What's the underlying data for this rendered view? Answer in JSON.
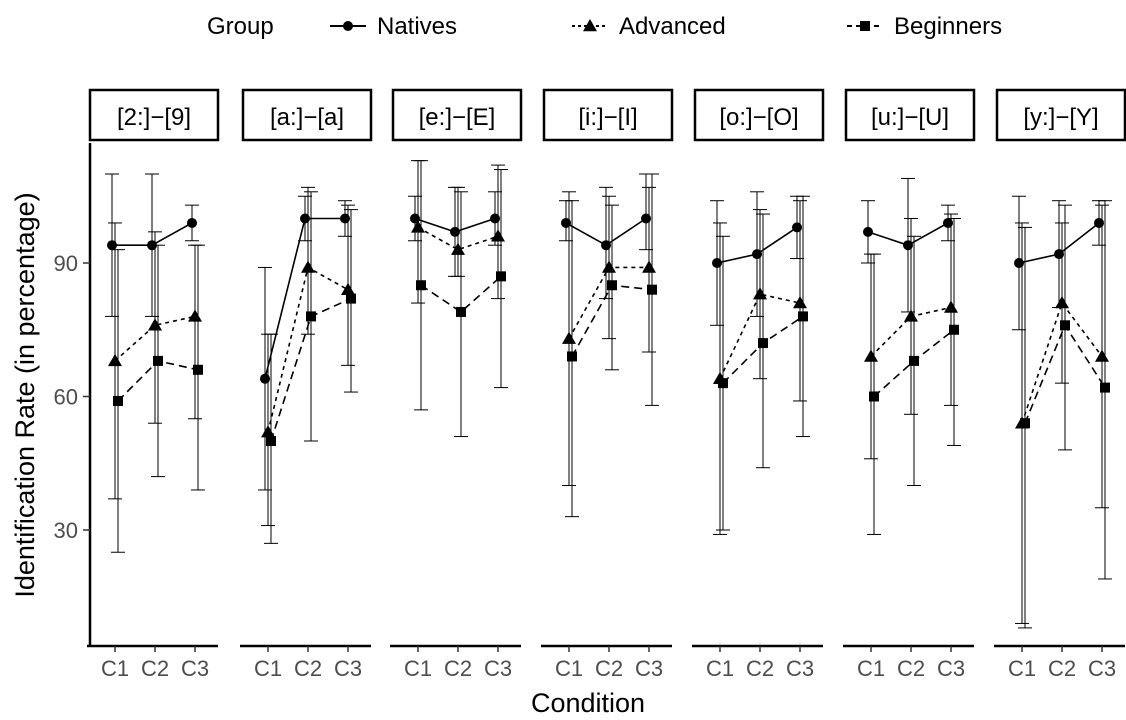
{
  "chart_data": {
    "type": "line",
    "xlabel": "Condition",
    "ylabel": "Identification Rate (in percentage)",
    "ylim": [
      0,
      115
    ],
    "yticks": [
      30,
      60,
      90
    ],
    "categories": [
      "C1",
      "C2",
      "C3"
    ],
    "legend": {
      "title": "Group",
      "placement": "top",
      "entries": [
        "Natives",
        "Advanced",
        "Beginners"
      ]
    },
    "panels": [
      {
        "label": "[2:]−[9]",
        "series": [
          {
            "name": "Natives",
            "values": [
              94,
              94,
              99
            ],
            "err": [
              [
                78,
                110
              ],
              [
                78,
                110
              ],
              [
                95,
                103
              ]
            ]
          },
          {
            "name": "Advanced",
            "values": [
              68,
              76,
              78
            ],
            "err": [
              [
                37,
                99
              ],
              [
                54,
                97
              ],
              [
                55,
                94
              ]
            ]
          },
          {
            "name": "Beginners",
            "values": [
              59,
              68,
              66
            ],
            "err": [
              [
                25,
                93
              ],
              [
                42,
                94
              ],
              [
                39,
                94
              ]
            ]
          }
        ]
      },
      {
        "label": "[a:]−[a]",
        "series": [
          {
            "name": "Natives",
            "values": [
              64,
              100,
              100
            ],
            "err": [
              [
                39,
                89
              ],
              [
                95,
                105
              ],
              [
                96,
                104
              ]
            ]
          },
          {
            "name": "Advanced",
            "values": [
              52,
              89,
              84
            ],
            "err": [
              [
                31,
                74
              ],
              [
                74,
                107
              ],
              [
                67,
                103
              ]
            ]
          },
          {
            "name": "Beginners",
            "values": [
              50,
              78,
              82
            ],
            "err": [
              [
                27,
                74
              ],
              [
                50,
                106
              ],
              [
                61,
                102
              ]
            ]
          }
        ]
      },
      {
        "label": "[e:]−[E]",
        "series": [
          {
            "name": "Natives",
            "values": [
              100,
              97,
              100
            ],
            "err": [
              [
                95,
                105
              ],
              [
                87,
                107
              ],
              [
                94,
                106
              ]
            ]
          },
          {
            "name": "Advanced",
            "values": [
              98,
              93,
              96
            ],
            "err": [
              [
                81,
                113
              ],
              [
                87,
                107
              ],
              [
                82,
                112
              ]
            ]
          },
          {
            "name": "Beginners",
            "values": [
              85,
              79,
              87
            ],
            "err": [
              [
                57,
                113
              ],
              [
                51,
                106
              ],
              [
                62,
                111
              ]
            ]
          }
        ]
      },
      {
        "label": "[i:]−[I]",
        "series": [
          {
            "name": "Natives",
            "values": [
              99,
              94,
              100
            ],
            "err": [
              [
                95,
                104
              ],
              [
                82,
                107
              ],
              [
                93,
                110
              ]
            ]
          },
          {
            "name": "Advanced",
            "values": [
              73,
              89,
              89
            ],
            "err": [
              [
                40,
                106
              ],
              [
                73,
                105
              ],
              [
                70,
                107
              ]
            ]
          },
          {
            "name": "Beginners",
            "values": [
              69,
              85,
              84
            ],
            "err": [
              [
                33,
                104
              ],
              [
                66,
                103
              ],
              [
                58,
                110
              ]
            ]
          }
        ]
      },
      {
        "label": "[o:]−[O]",
        "series": [
          {
            "name": "Natives",
            "values": [
              90,
              92,
              98
            ],
            "err": [
              [
                76,
                104
              ],
              [
                78,
                106
              ],
              [
                91,
                105
              ]
            ]
          },
          {
            "name": "Advanced",
            "values": [
              64,
              83,
              81
            ],
            "err": [
              [
                29,
                99
              ],
              [
                64,
                102
              ],
              [
                59,
                104
              ]
            ]
          },
          {
            "name": "Beginners",
            "values": [
              63,
              72,
              78
            ],
            "err": [
              [
                30,
                96
              ],
              [
                44,
                101
              ],
              [
                51,
                105
              ]
            ]
          }
        ]
      },
      {
        "label": "[u:]−[U]",
        "series": [
          {
            "name": "Natives",
            "values": [
              97,
              94,
              99
            ],
            "err": [
              [
                90,
                104
              ],
              [
                79,
                109
              ],
              [
                95,
                103
              ]
            ]
          },
          {
            "name": "Advanced",
            "values": [
              69,
              78,
              80
            ],
            "err": [
              [
                46,
                92
              ],
              [
                56,
                100
              ],
              [
                58,
                101
              ]
            ]
          },
          {
            "name": "Beginners",
            "values": [
              60,
              68,
              75
            ],
            "err": [
              [
                29,
                92
              ],
              [
                40,
                96
              ],
              [
                49,
                100
              ]
            ]
          }
        ]
      },
      {
        "label": "[y:]−[Y]",
        "series": [
          {
            "name": "Natives",
            "values": [
              90,
              92,
              99
            ],
            "err": [
              [
                75,
                105
              ],
              [
                80,
                104
              ],
              [
                94,
                104
              ]
            ]
          },
          {
            "name": "Advanced",
            "values": [
              54,
              81,
              69
            ],
            "err": [
              [
                9,
                99
              ],
              [
                63,
                99
              ],
              [
                35,
                103
              ]
            ]
          },
          {
            "name": "Beginners",
            "values": [
              54,
              76,
              62
            ],
            "err": [
              [
                8,
                98
              ],
              [
                48,
                103
              ],
              [
                19,
                104
              ]
            ]
          }
        ]
      }
    ]
  }
}
